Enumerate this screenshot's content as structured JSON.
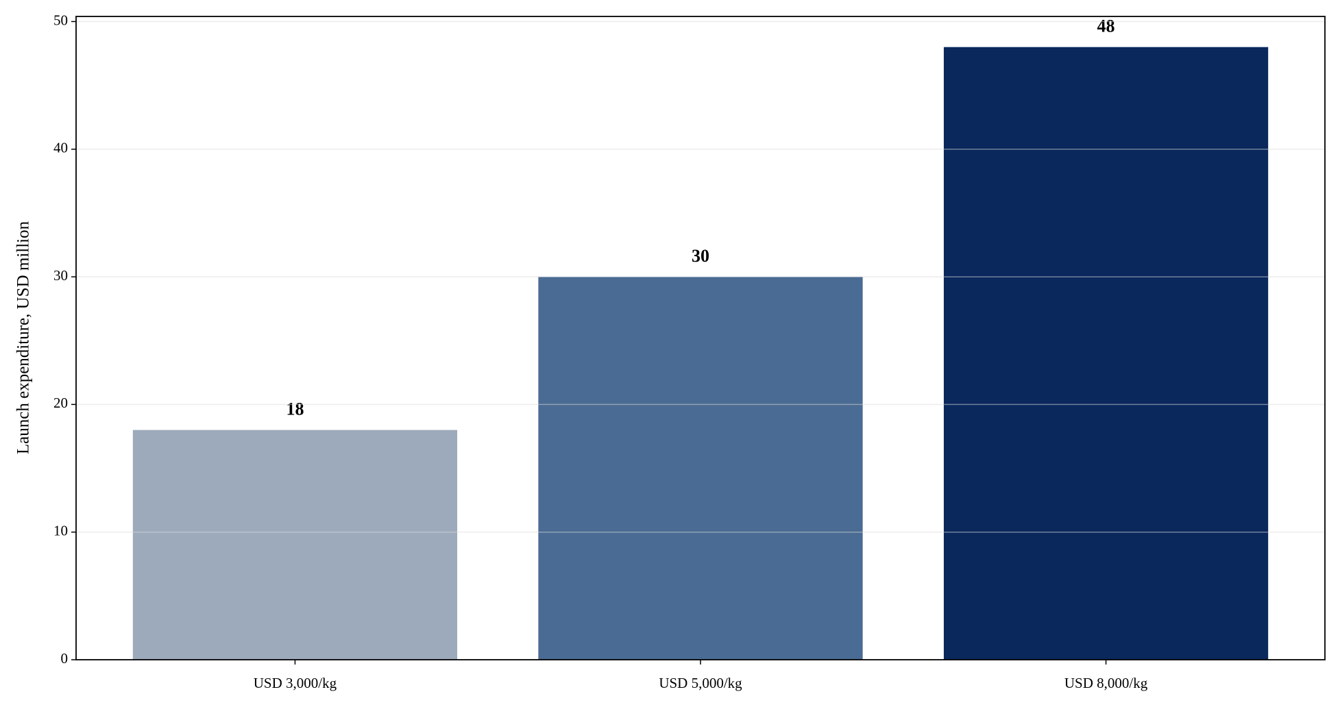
{
  "chart_data": {
    "type": "bar",
    "ylabel": "Launch expenditure, USD million",
    "categories": [
      "USD 3,000/kg",
      "USD 5,000/kg",
      "USD 8,000/kg"
    ],
    "values": [
      18,
      30,
      48
    ],
    "colors": [
      "#9caabb",
      "#4a6b93",
      "#0a285c"
    ],
    "ylim": [
      0,
      50.4
    ],
    "yticks": [
      0,
      10,
      20,
      30,
      40,
      50
    ],
    "grid": true
  }
}
